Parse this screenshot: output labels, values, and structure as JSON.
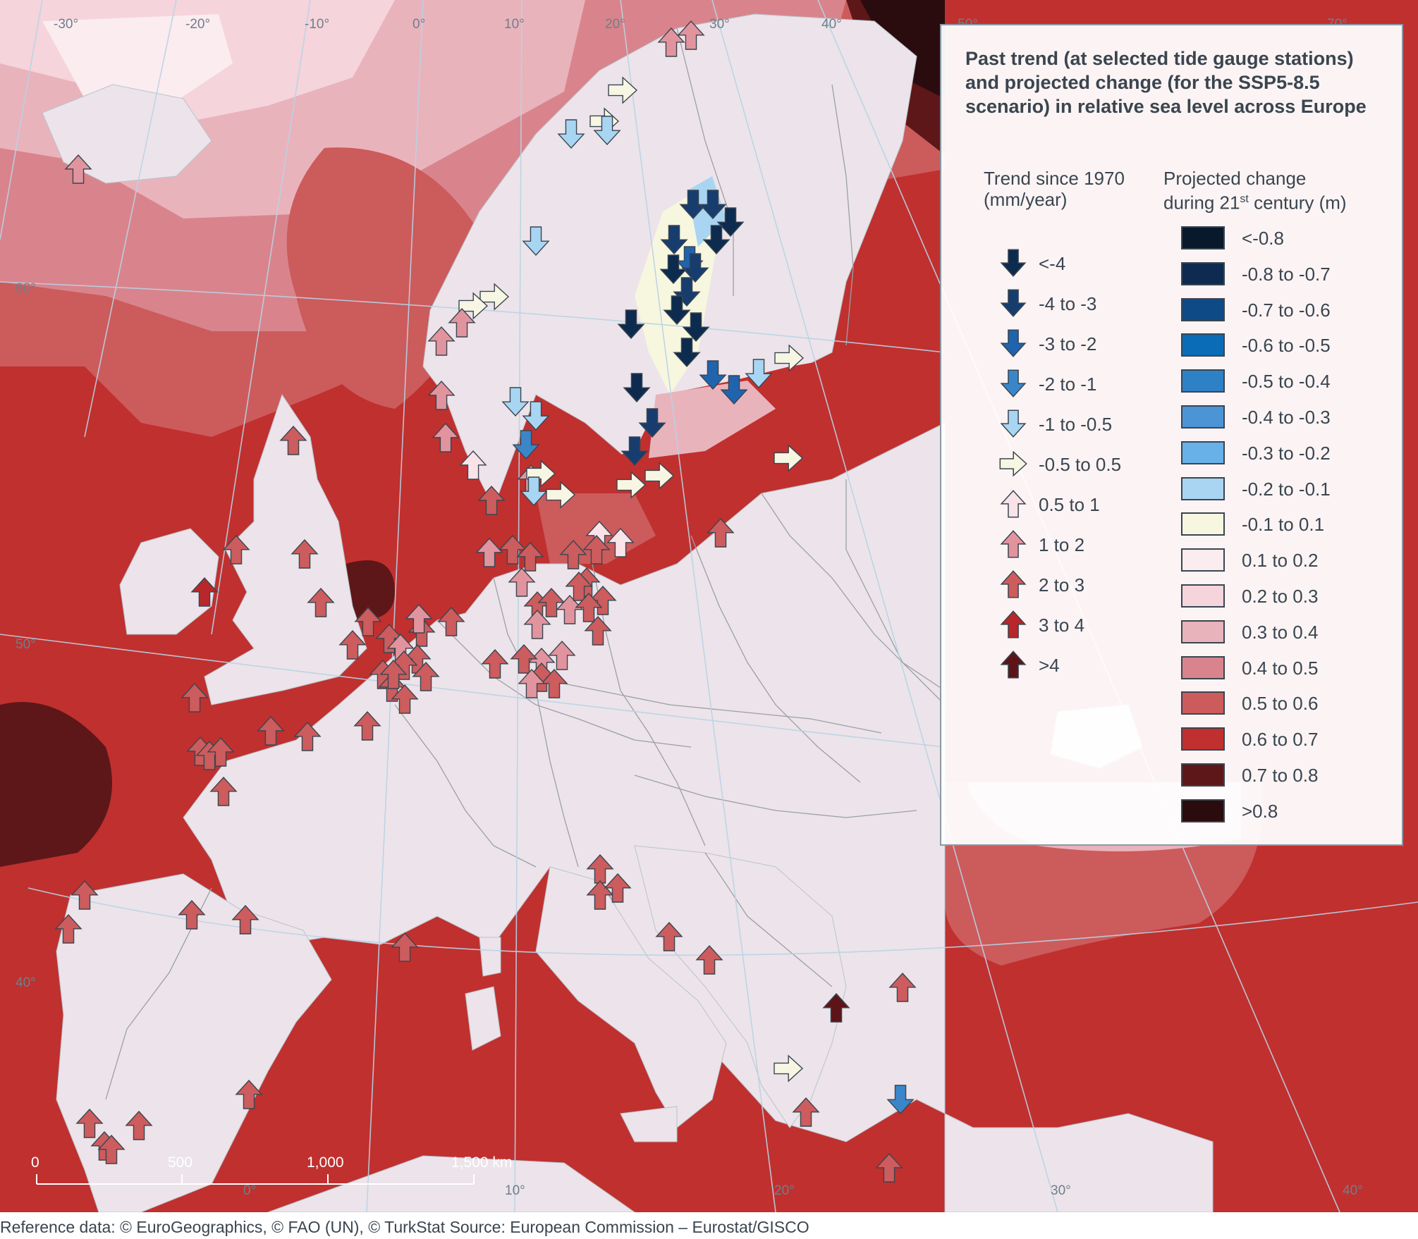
{
  "title": "Past trend (at selected tide gauge stations) and projected change (for the SSP5-8.5 scenario) in relative sea level across Europe",
  "legend": {
    "trend_heading_line1": "Trend since 1970",
    "trend_heading_line2": "(mm/year)",
    "change_heading_line1": "Projected change",
    "change_heading_line2_pre": "during 21",
    "change_heading_line2_sup": "st",
    "change_heading_line2_post": " century (m)",
    "trend_classes": [
      {
        "label": "<-4",
        "dir": "down",
        "color": "#0d2b4e"
      },
      {
        "label": "-4 to -3",
        "dir": "down",
        "color": "#173d6e"
      },
      {
        "label": "-3 to -2",
        "dir": "down",
        "color": "#1f64ad"
      },
      {
        "label": "-2 to -1",
        "dir": "down",
        "color": "#3b86c8"
      },
      {
        "label": "-1 to -0.5",
        "dir": "down",
        "color": "#a8d5f2"
      },
      {
        "label": "-0.5 to 0.5",
        "dir": "right",
        "color": "#f7f6e2"
      },
      {
        "label": "0.5 to 1",
        "dir": "up",
        "color": "#f9e3e8"
      },
      {
        "label": "1 to 2",
        "dir": "up",
        "color": "#e2949e"
      },
      {
        "label": "2 to 3",
        "dir": "up",
        "color": "#cc5c5d"
      },
      {
        "label": "3 to 4",
        "dir": "up",
        "color": "#b8272a"
      },
      {
        "label": ">4",
        "dir": "up",
        "color": "#5c1418"
      }
    ],
    "change_classes": [
      {
        "label": "<-0.8",
        "color": "#08192c"
      },
      {
        "label": "-0.8 to -0.7",
        "color": "#0d2b50"
      },
      {
        "label": "-0.7 to -0.6",
        "color": "#0e4a86"
      },
      {
        "label": "-0.6 to -0.5",
        "color": "#0a6bb7"
      },
      {
        "label": "-0.5 to -0.4",
        "color": "#2f81c6"
      },
      {
        "label": "-0.4 to -0.3",
        "color": "#4b95d6"
      },
      {
        "label": "-0.3 to -0.2",
        "color": "#68b0e8"
      },
      {
        "label": "-0.2 to -0.1",
        "color": "#a9d5f3"
      },
      {
        "label": "-0.1 to 0.1",
        "color": "#f7f6df"
      },
      {
        "label": "0.1 to 0.2",
        "color": "#fbecef"
      },
      {
        "label": "0.2 to 0.3",
        "color": "#f5d4dc"
      },
      {
        "label": "0.3 to 0.4",
        "color": "#e9b3bc"
      },
      {
        "label": "0.4 to 0.5",
        "color": "#d9848c"
      },
      {
        "label": "0.5 to 0.6",
        "color": "#cc5b5c"
      },
      {
        "label": "0.6 to 0.7",
        "color": "#c0302f"
      },
      {
        "label": "0.7 to 0.8",
        "color": "#5e1719"
      },
      {
        "label": ">0.8",
        "color": "#2a0c0e"
      }
    ]
  },
  "graticule_labels": {
    "lon_top": [
      "-30°",
      "-20°",
      "-10°",
      "0°",
      "10°",
      "20°",
      "30°",
      "40°",
      "50°",
      "70°"
    ],
    "lat_left": [
      "60°",
      "50°",
      "40°"
    ],
    "lon_bottom": [
      "0°",
      "10°",
      "20°",
      "30°",
      "40°"
    ]
  },
  "scale_bar": {
    "ticks": [
      "0",
      "500",
      "1,000",
      "1,500 km"
    ]
  },
  "credit": "Reference data: © EuroGeographics, © FAO (UN), © TurkStat Source: European Commission – Eurostat/GISCO",
  "colors": {
    "land": "#ece4ea",
    "border": "#9aa0a6",
    "sea_default": "#c0302f"
  }
}
